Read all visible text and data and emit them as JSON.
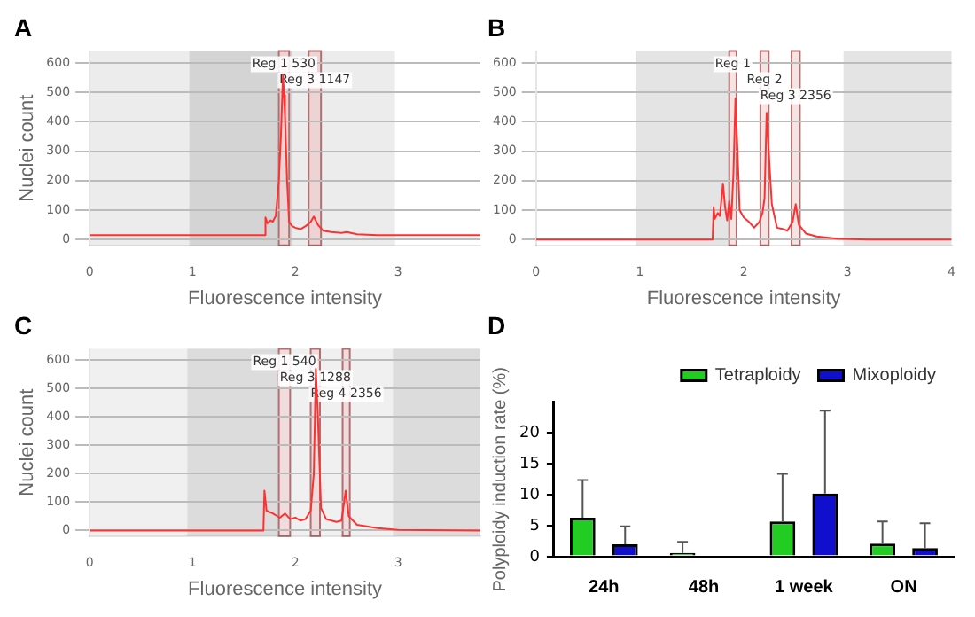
{
  "chart_data": [
    {
      "type": "line",
      "title": "A",
      "xlabel": "Fluorescence intensity",
      "ylabel": "Nuclei count",
      "xlim": [
        0,
        3.8
      ],
      "xticks": [
        0,
        1,
        2,
        3
      ],
      "ylim": [
        -20,
        640
      ],
      "yticks": [
        0,
        100,
        200,
        300,
        400,
        500,
        600
      ],
      "grid": "y",
      "bands": [
        {
          "axis": "x",
          "from": 0,
          "to": 2.97,
          "color": "#ececec"
        },
        {
          "axis": "x",
          "from": 0.97,
          "to": 1.97,
          "color": "#d4d4d4"
        },
        {
          "axis": "x",
          "from": 1.84,
          "to": 1.94,
          "label": "Reg 1 530",
          "color": "#ecd4d4"
        },
        {
          "axis": "x",
          "from": 2.13,
          "to": 2.25,
          "label": "Reg 3 1147",
          "color": "#ecd4d4"
        }
      ],
      "series": [
        {
          "color": "#ff3030",
          "x": [
            0,
            1.7,
            1.71,
            1.73,
            1.76,
            1.78,
            1.81,
            1.84,
            1.86,
            1.88,
            1.89,
            1.9,
            1.92,
            1.94,
            1.97,
            2.0,
            2.05,
            2.1,
            2.15,
            2.18,
            2.22,
            2.27,
            2.35,
            2.45,
            2.5,
            2.6,
            2.8,
            3.8
          ],
          "values": [
            15,
            15,
            75,
            55,
            65,
            60,
            80,
            200,
            350,
            560,
            490,
            420,
            200,
            60,
            45,
            40,
            35,
            45,
            60,
            78,
            50,
            30,
            25,
            22,
            25,
            18,
            15,
            15
          ]
        }
      ]
    },
    {
      "type": "line",
      "title": "B",
      "xlabel": "Fluorescence intensity",
      "xlim": [
        0,
        4
      ],
      "xticks": [
        0,
        1,
        2,
        3,
        4
      ],
      "ylim": [
        -20,
        640
      ],
      "yticks": [
        0,
        100,
        200,
        300,
        400,
        500,
        600
      ],
      "grid": "y",
      "bands": [
        {
          "axis": "x",
          "from": 0.96,
          "to": 1.94,
          "color": "#e4e4e4"
        },
        {
          "axis": "x",
          "from": 2.96,
          "to": 4,
          "color": "#e4e4e4"
        },
        {
          "axis": "x",
          "from": 1.86,
          "to": 1.93,
          "label": "Reg 1",
          "color": "#f4e4e4"
        },
        {
          "axis": "x",
          "from": 2.16,
          "to": 2.24,
          "label": "Reg 2",
          "color": "#f4e4e4"
        },
        {
          "axis": "x",
          "from": 2.46,
          "to": 2.54,
          "label": "Reg 3 2356",
          "color": "#f4e4e4"
        }
      ],
      "series": [
        {
          "color": "#ff3030",
          "x": [
            0,
            1.7,
            1.71,
            1.72,
            1.75,
            1.77,
            1.8,
            1.82,
            1.84,
            1.86,
            1.88,
            1.9,
            1.92,
            1.94,
            1.96,
            2.0,
            2.05,
            2.1,
            2.15,
            2.18,
            2.2,
            2.22,
            2.24,
            2.27,
            2.32,
            2.38,
            2.42,
            2.47,
            2.5,
            2.53,
            2.6,
            2.7,
            2.9,
            3.2,
            4
          ],
          "values": [
            0,
            0,
            110,
            70,
            90,
            80,
            190,
            110,
            65,
            130,
            70,
            220,
            480,
            300,
            100,
            75,
            60,
            40,
            60,
            90,
            140,
            430,
            300,
            120,
            40,
            35,
            30,
            60,
            120,
            50,
            20,
            10,
            3,
            0,
            0
          ]
        }
      ]
    },
    {
      "type": "line",
      "title": "C",
      "xlabel": "Fluorescence intensity",
      "ylabel": "Nuclei count",
      "xlim": [
        0,
        3.8
      ],
      "xticks": [
        0,
        1,
        2,
        3
      ],
      "ylim": [
        -20,
        640
      ],
      "yticks": [
        0,
        100,
        200,
        300,
        400,
        500,
        600
      ],
      "grid": "y",
      "bands": [
        {
          "axis": "x",
          "from": 0,
          "to": 3.8,
          "color": "#f0f0f0"
        },
        {
          "axis": "x",
          "from": 0.95,
          "to": 1.95,
          "color": "#dcdcdc"
        },
        {
          "axis": "x",
          "from": 2.95,
          "to": 3.8,
          "color": "#dcdcdc"
        },
        {
          "axis": "x",
          "from": 1.84,
          "to": 1.95,
          "label": "Reg 1 540",
          "color": "#f0dcdc"
        },
        {
          "axis": "x",
          "from": 2.15,
          "to": 2.24,
          "label": "Reg 3 1288",
          "color": "#f0dcdc"
        },
        {
          "axis": "x",
          "from": 2.46,
          "to": 2.53,
          "label": "Reg 4 2356",
          "color": "#f0dcdc"
        }
      ],
      "series": [
        {
          "color": "#ff3030",
          "x": [
            0,
            1.69,
            1.7,
            1.72,
            1.78,
            1.85,
            1.9,
            1.95,
            2.0,
            2.05,
            2.1,
            2.15,
            2.18,
            2.2,
            2.22,
            2.25,
            2.3,
            2.4,
            2.45,
            2.49,
            2.52,
            2.6,
            2.8,
            3.0,
            3.8
          ],
          "values": [
            0,
            0,
            140,
            70,
            60,
            45,
            60,
            40,
            45,
            35,
            40,
            70,
            200,
            570,
            400,
            80,
            40,
            30,
            35,
            140,
            50,
            20,
            8,
            2,
            0
          ]
        }
      ]
    },
    {
      "type": "bar",
      "title": "D",
      "ylabel": "Polyploidy induction rate (%)",
      "categories": [
        "24h",
        "48h",
        "1 week",
        "ON"
      ],
      "ylim": [
        0,
        25
      ],
      "yticks": [
        0,
        5,
        10,
        15,
        20
      ],
      "grid": false,
      "legend": "top right",
      "series": [
        {
          "name": "Tetraploidy",
          "color": "#22cc22",
          "values": [
            6.3,
            0.6,
            5.7,
            2.1
          ],
          "errors": [
            [
              6.3,
              12.4
            ],
            [
              0.6,
              2.4
            ],
            [
              5.7,
              13.4
            ],
            [
              2.1,
              5.7
            ]
          ]
        },
        {
          "name": "Mixoploidy",
          "color": "#1010cc",
          "values": [
            2.0,
            null,
            10.2,
            1.4
          ],
          "errors": [
            [
              2.0,
              4.9
            ],
            null,
            [
              10.2,
              23.6
            ],
            [
              1.4,
              5.4
            ]
          ]
        }
      ]
    }
  ]
}
